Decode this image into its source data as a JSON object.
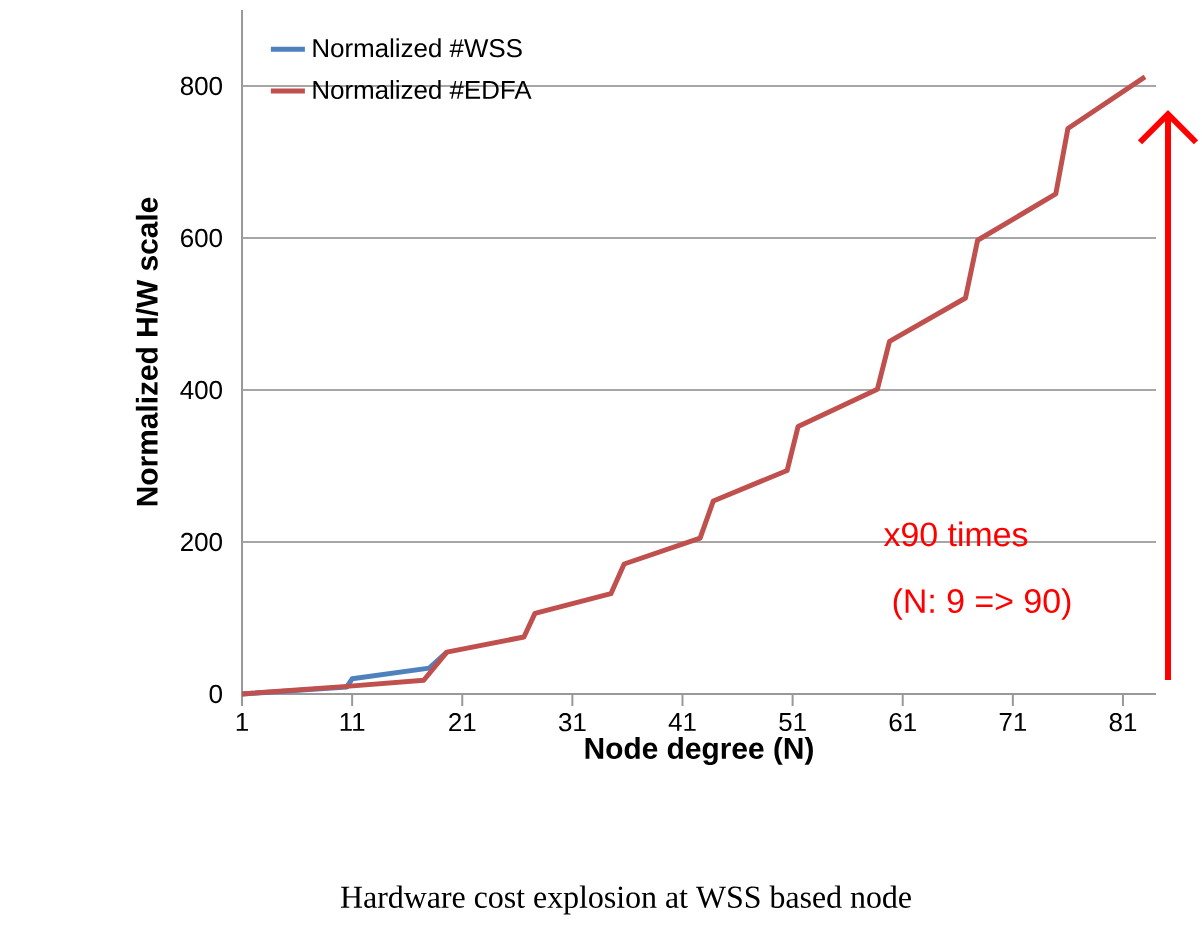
{
  "chart_data": {
    "type": "line",
    "xlabel": "Node degree (N)",
    "ylabel": "Normalized H/W scale",
    "series": [
      {
        "name": "Normalized #WSS",
        "color": "#4f81bd",
        "x": [
          1,
          10.5,
          11,
          18,
          19.6
        ],
        "values": [
          0,
          9,
          20,
          34,
          55
        ]
      },
      {
        "name": "Normalized #EDFA",
        "color": "#c0504d",
        "x": [
          1,
          10.5,
          17.5,
          19.6,
          26.6,
          27.6,
          34.5,
          35.7,
          42.6,
          43.8,
          50.5,
          51.5,
          58.7,
          59.8,
          66.7,
          67.8,
          74.9,
          76,
          83
        ],
        "values": [
          0,
          10,
          18,
          55,
          75,
          106,
          132,
          171,
          205,
          254,
          294,
          352,
          401,
          464,
          521,
          597,
          658,
          744,
          812
        ]
      }
    ],
    "xlim": [
      1,
      84
    ],
    "ylim": [
      0,
      900
    ],
    "xticks": [
      1,
      11,
      21,
      31,
      41,
      51,
      61,
      71,
      81
    ],
    "yticks": [
      0,
      200,
      400,
      600,
      800
    ],
    "grid": "y",
    "legend": "top left",
    "line_style": "solid",
    "marker": "none",
    "annotations": [
      "x90 times",
      "(N: 9 => 90)",
      "Hardware cost explosion at WSS based node"
    ]
  }
}
